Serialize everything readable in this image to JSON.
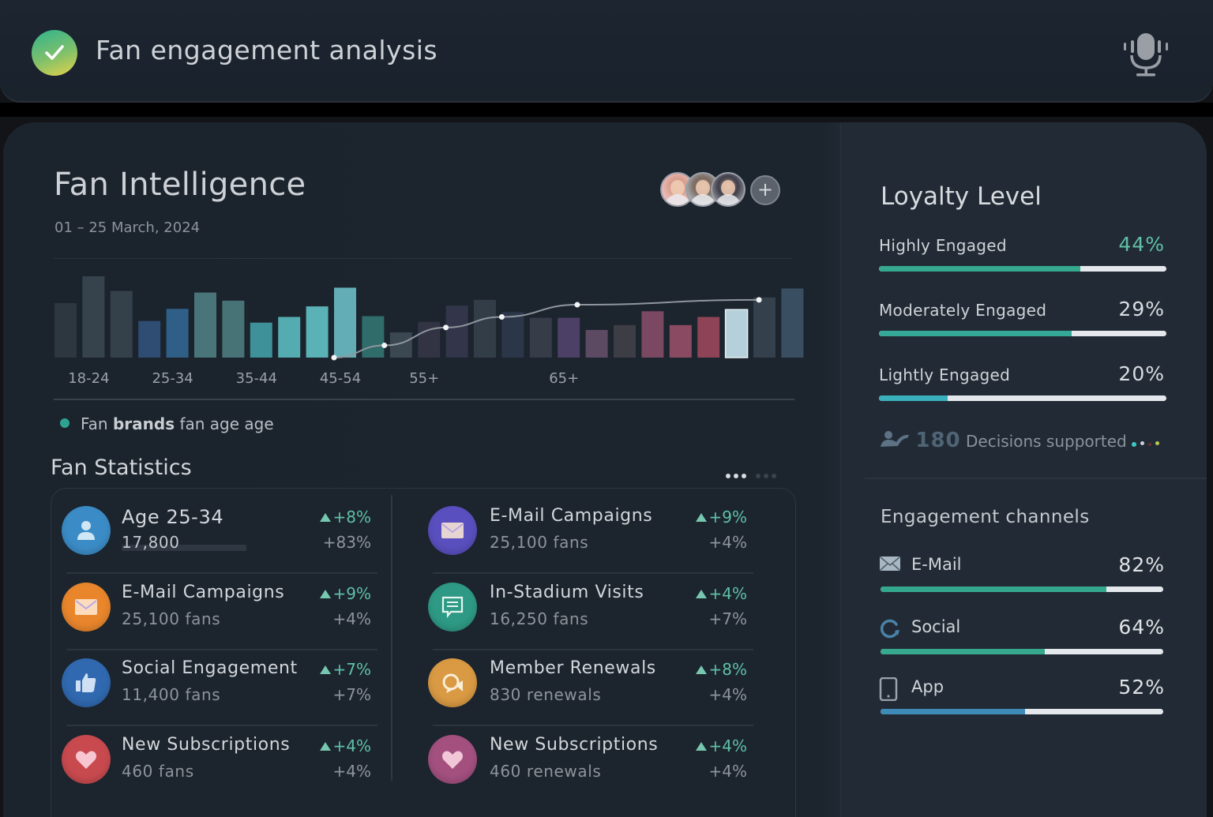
{
  "header": {
    "title": "Fan engagement analysis",
    "status_icon": "check-circle-icon",
    "mic_icon": "microphone-icon"
  },
  "fan_intelligence": {
    "title": "Fan Intelligence",
    "date_range": "01 – 25 March, 2024",
    "avatars": [
      "avatar-woman",
      "avatar-man",
      "avatar-person"
    ],
    "add_label": "+",
    "legend": {
      "prefix": "Fan ",
      "bold": "brands",
      "suffix": " fan age age",
      "color": "#2fa391"
    }
  },
  "chart_data": {
    "type": "bar",
    "title": "",
    "xlabel": "",
    "ylabel": "",
    "ylim": [
      0,
      100
    ],
    "grid": false,
    "tick_labels": [
      {
        "label": "18-24",
        "bar_index": 1
      },
      {
        "label": "25-34",
        "bar_index": 4
      },
      {
        "label": "35-44",
        "bar_index": 7
      },
      {
        "label": "45-54",
        "bar_index": 10
      },
      {
        "label": "55+",
        "bar_index": 13
      },
      {
        "label": "65+",
        "bar_index": 18
      }
    ],
    "values": [
      67,
      100,
      82,
      45,
      60,
      80,
      70,
      43,
      50,
      63,
      86,
      51,
      31,
      44,
      64,
      71,
      56,
      49,
      49,
      34,
      40,
      57,
      40,
      50,
      59,
      74,
      85
    ],
    "bar_colors": [
      "#2c3740",
      "#36434d",
      "#34414b",
      "#2f4c72",
      "#2f5f86",
      "#48747a",
      "#477376",
      "#3e9198",
      "#55acb0",
      "#5ab1b6",
      "#63aeb6",
      "#2f6c6a",
      "#3b4852",
      "#323443",
      "#33364a",
      "#323d48",
      "#2c3649",
      "#363c48",
      "#4d4066",
      "#5c4a62",
      "#3d3d46",
      "#7a4860",
      "#8a4a62",
      "#8e4356",
      "#b5d0da",
      "#34414c",
      "#3a4e62"
    ],
    "line_series": {
      "name": "trend",
      "points": [
        [
          10,
          0
        ],
        [
          11.8,
          15
        ],
        [
          14,
          37
        ],
        [
          16,
          50
        ],
        [
          18.7,
          65
        ],
        [
          25.2,
          71
        ]
      ]
    }
  },
  "fan_statistics": {
    "title": "Fan Statistics",
    "left": [
      {
        "name": "Age 25-34",
        "sub": "17,800",
        "change": "+8%",
        "pct": "+83%",
        "icon": "user-icon",
        "color": "#3b8cc6"
      },
      {
        "name": "E-Mail Campaigns",
        "sub": "25,100 fans",
        "change": "+9%",
        "pct": "+4%",
        "icon": "envelope-icon",
        "color": "#e9862c"
      },
      {
        "name": "Social Engagement",
        "sub": "11,400 fans",
        "change": "+7%",
        "pct": "+7%",
        "icon": "thumbs-up-icon",
        "color": "#3069b0"
      },
      {
        "name": "New Subscriptions",
        "sub": "460 fans",
        "change": "+4%",
        "pct": "+4%",
        "icon": "heart-icon",
        "color": "#c84a4f"
      }
    ],
    "right": [
      {
        "name": "E-Mail Campaigns",
        "sub": "25,100 fans",
        "change": "+9%",
        "pct": "+4%",
        "icon": "envelope-icon",
        "color": "#5a4fbe"
      },
      {
        "name": "In-Stadium Visits",
        "sub": "16,250 fans",
        "change": "+4%",
        "pct": "+7%",
        "icon": "chat-icon",
        "color": "#2e9a85"
      },
      {
        "name": "Member Renewals",
        "sub": "830 renewals",
        "change": "+8%",
        "pct": "+4%",
        "icon": "renewal-icon",
        "color": "#d99a43"
      },
      {
        "name": "New Subscriptions",
        "sub": "460 renewals",
        "change": "+4%",
        "pct": "+4%",
        "icon": "heart-icon",
        "color": "#a3507f"
      }
    ]
  },
  "loyalty": {
    "title": "Loyalty Level",
    "levels": [
      {
        "label": "Highly Engaged",
        "value": "44%",
        "fill": 0.7,
        "color": "#35a88e",
        "value_color": "#5fc0a7"
      },
      {
        "label": "Moderately Engaged",
        "value": "29%",
        "fill": 0.67,
        "color": "#36a898",
        "value_color": "#d9dde1"
      },
      {
        "label": "Lightly Engaged",
        "value": "20%",
        "fill": 0.24,
        "color": "#3bb0bd",
        "value_color": "#d9dde1"
      }
    ],
    "decisions": {
      "count": "180",
      "label": "Decisions supported"
    }
  },
  "channels": {
    "title": "Engagement channels",
    "items": [
      {
        "label": "E-Mail",
        "value": "82%",
        "fill": 0.8,
        "icon": "mail-icon",
        "color": "#34a88e"
      },
      {
        "label": "Social",
        "value": "64%",
        "fill": 0.58,
        "icon": "refresh-icon",
        "color": "#35a88e"
      },
      {
        "label": "App",
        "value": "52%",
        "fill": 0.51,
        "icon": "phone-icon",
        "color": "#3d8bb6"
      }
    ]
  }
}
